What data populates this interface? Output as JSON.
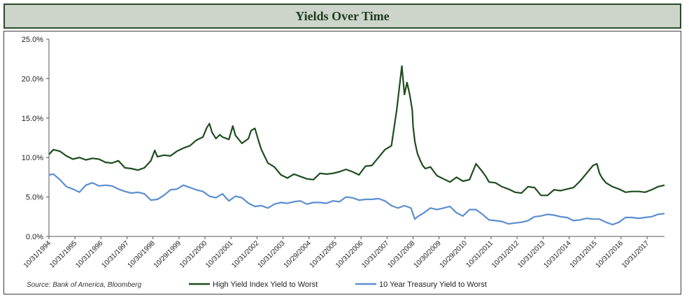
{
  "chart_data": {
    "type": "line",
    "title": "Yields Over Time",
    "source": "Source: Bank of America, Bloomberg",
    "ylim": [
      0,
      25
    ],
    "y_ticks": [
      "0.0%",
      "5.0%",
      "10.0%",
      "15.0%",
      "20.0%",
      "25.0%"
    ],
    "y_tick_values": [
      0,
      5,
      10,
      15,
      20,
      25
    ],
    "x_range": [
      1994.83,
      2018.5
    ],
    "x_ticks": [
      "10/31/1994",
      "10/31/1995",
      "10/31/1996",
      "10/31/1997",
      "10/30/1998",
      "10/29/1999",
      "10/31/2000",
      "10/31/2001",
      "10/31/2002",
      "10/31/2003",
      "10/29/2004",
      "10/31/2005",
      "10/31/2006",
      "10/31/2007",
      "10/31/2008",
      "10/30/2009",
      "10/29/2010",
      "10/31/2011",
      "10/31/2012",
      "10/31/2013",
      "10/31/2014",
      "10/31/2015",
      "10/31/2016",
      "10/31/2017"
    ],
    "x_tick_values": [
      1994.83,
      1995.83,
      1996.83,
      1997.83,
      1998.83,
      1999.83,
      2000.83,
      2001.83,
      2002.83,
      2003.83,
      2004.83,
      2005.83,
      2006.83,
      2007.83,
      2008.83,
      2009.83,
      2010.83,
      2011.83,
      2012.83,
      2013.83,
      2014.83,
      2015.83,
      2016.83,
      2017.83
    ],
    "grid": false,
    "legend_position": "bottom",
    "series": [
      {
        "name": "High Yield Index Yield to Worst",
        "color": "#1e4d1e",
        "x": [
          1994.83,
          1995.0,
          1995.25,
          1995.5,
          1995.75,
          1996.0,
          1996.25,
          1996.5,
          1996.75,
          1997.0,
          1997.25,
          1997.5,
          1997.75,
          1998.0,
          1998.25,
          1998.5,
          1998.75,
          1998.9,
          1999.0,
          1999.25,
          1999.5,
          1999.75,
          2000.0,
          2000.25,
          2000.5,
          2000.75,
          2000.9,
          2001.0,
          2001.1,
          2001.25,
          2001.4,
          2001.5,
          2001.75,
          2001.9,
          2002.0,
          2002.25,
          2002.5,
          2002.6,
          2002.75,
          2002.9,
          2003.0,
          2003.25,
          2003.5,
          2003.75,
          2004.0,
          2004.25,
          2004.5,
          2004.75,
          2005.0,
          2005.25,
          2005.5,
          2005.75,
          2006.0,
          2006.25,
          2006.5,
          2006.75,
          2007.0,
          2007.25,
          2007.5,
          2007.75,
          2008.0,
          2008.2,
          2008.4,
          2008.5,
          2008.6,
          2008.7,
          2008.8,
          2008.83,
          2008.9,
          2009.0,
          2009.1,
          2009.2,
          2009.3,
          2009.5,
          2009.75,
          2010.0,
          2010.25,
          2010.5,
          2010.75,
          2011.0,
          2011.25,
          2011.5,
          2011.65,
          2011.75,
          2012.0,
          2012.25,
          2012.5,
          2012.75,
          2013.0,
          2013.25,
          2013.5,
          2013.75,
          2014.0,
          2014.25,
          2014.5,
          2014.75,
          2015.0,
          2015.25,
          2015.5,
          2015.75,
          2015.9,
          2016.0,
          2016.1,
          2016.25,
          2016.5,
          2016.75,
          2017.0,
          2017.25,
          2017.5,
          2017.75,
          2018.0,
          2018.25,
          2018.5
        ],
        "values": [
          10.4,
          11.0,
          10.8,
          10.2,
          9.8,
          10.0,
          9.7,
          9.9,
          9.8,
          9.4,
          9.3,
          9.6,
          8.7,
          8.6,
          8.4,
          8.7,
          9.6,
          10.9,
          10.1,
          10.3,
          10.2,
          10.8,
          11.2,
          11.5,
          12.2,
          12.6,
          13.8,
          14.3,
          13.2,
          12.4,
          12.9,
          12.6,
          12.3,
          14.0,
          12.8,
          11.8,
          12.4,
          13.4,
          13.7,
          12.0,
          11.0,
          9.3,
          8.8,
          7.8,
          7.4,
          7.9,
          7.6,
          7.3,
          7.2,
          8.0,
          7.9,
          8.0,
          8.2,
          8.5,
          8.2,
          7.8,
          8.9,
          9.0,
          10.0,
          11.0,
          11.5,
          16.0,
          21.6,
          18.0,
          19.5,
          18.0,
          16.0,
          14.0,
          12.0,
          10.5,
          9.7,
          9.0,
          8.6,
          8.8,
          7.7,
          7.3,
          6.9,
          7.5,
          7.0,
          7.2,
          9.2,
          8.2,
          7.5,
          6.9,
          6.8,
          6.3,
          6.0,
          5.6,
          5.5,
          6.3,
          6.2,
          5.2,
          5.2,
          5.9,
          5.8,
          6.0,
          6.2,
          7.0,
          8.0,
          9.0,
          9.2,
          8.0,
          7.4,
          6.8,
          6.3,
          6.0,
          5.6,
          5.7,
          5.7,
          5.6,
          5.9,
          6.3,
          6.5
        ]
      },
      {
        "name": "10 Year Treasury Yield to Worst",
        "color": "#5b8ed0",
        "x": [
          1994.83,
          1995.0,
          1995.25,
          1995.5,
          1995.75,
          1996.0,
          1996.25,
          1996.5,
          1996.75,
          1997.0,
          1997.25,
          1997.5,
          1997.75,
          1998.0,
          1998.25,
          1998.5,
          1998.75,
          1999.0,
          1999.25,
          1999.5,
          1999.75,
          2000.0,
          2000.25,
          2000.5,
          2000.75,
          2001.0,
          2001.25,
          2001.5,
          2001.75,
          2002.0,
          2002.25,
          2002.5,
          2002.75,
          2003.0,
          2003.25,
          2003.5,
          2003.75,
          2004.0,
          2004.25,
          2004.5,
          2004.75,
          2005.0,
          2005.25,
          2005.5,
          2005.75,
          2006.0,
          2006.25,
          2006.5,
          2006.75,
          2007.0,
          2007.25,
          2007.5,
          2007.75,
          2008.0,
          2008.25,
          2008.5,
          2008.75,
          2008.9,
          2009.0,
          2009.25,
          2009.5,
          2009.75,
          2010.0,
          2010.25,
          2010.5,
          2010.75,
          2011.0,
          2011.25,
          2011.5,
          2011.75,
          2012.0,
          2012.25,
          2012.5,
          2012.75,
          2013.0,
          2013.25,
          2013.5,
          2013.75,
          2014.0,
          2014.25,
          2014.5,
          2014.75,
          2015.0,
          2015.25,
          2015.5,
          2015.75,
          2016.0,
          2016.25,
          2016.5,
          2016.75,
          2017.0,
          2017.25,
          2017.5,
          2017.75,
          2018.0,
          2018.25,
          2018.5
        ],
        "values": [
          7.8,
          7.9,
          7.2,
          6.3,
          6.0,
          5.6,
          6.5,
          6.8,
          6.4,
          6.5,
          6.4,
          6.0,
          5.7,
          5.5,
          5.6,
          5.4,
          4.6,
          4.7,
          5.2,
          5.9,
          6.0,
          6.5,
          6.2,
          5.9,
          5.7,
          5.1,
          4.9,
          5.4,
          4.5,
          5.1,
          4.9,
          4.2,
          3.8,
          3.9,
          3.6,
          4.1,
          4.3,
          4.2,
          4.4,
          4.5,
          4.1,
          4.3,
          4.3,
          4.2,
          4.5,
          4.4,
          5.0,
          4.9,
          4.6,
          4.7,
          4.7,
          4.8,
          4.5,
          3.9,
          3.6,
          3.9,
          3.6,
          2.2,
          2.5,
          3.0,
          3.6,
          3.4,
          3.6,
          3.8,
          3.0,
          2.6,
          3.4,
          3.4,
          2.8,
          2.1,
          2.0,
          1.9,
          1.6,
          1.7,
          1.8,
          2.0,
          2.5,
          2.6,
          2.8,
          2.7,
          2.5,
          2.4,
          2.0,
          2.1,
          2.3,
          2.2,
          2.2,
          1.8,
          1.5,
          1.8,
          2.4,
          2.4,
          2.3,
          2.4,
          2.5,
          2.8,
          2.9
        ]
      }
    ]
  }
}
